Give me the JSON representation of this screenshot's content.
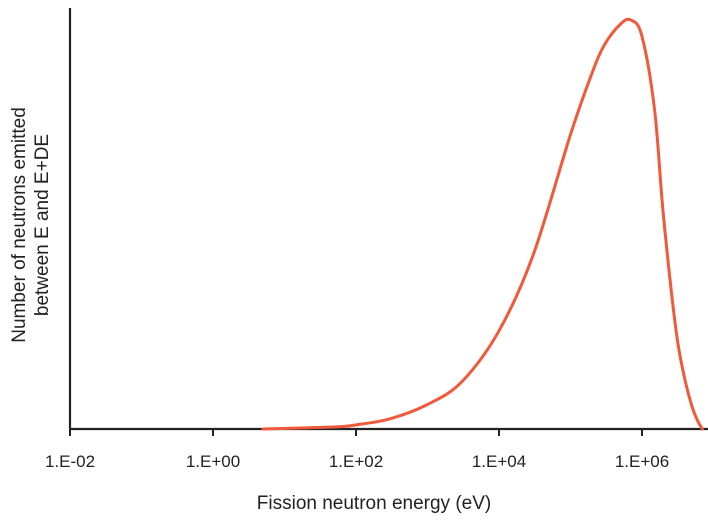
{
  "chart_data": {
    "type": "line",
    "title": "",
    "xlabel": "Fission neutron energy (eV)",
    "ylabel_lines": [
      "Number of neutrons emitted",
      "between E and E+DE"
    ],
    "x_scale": "log",
    "xlim": [
      0.01,
      7000000
    ],
    "ylim": [
      0,
      1.0
    ],
    "x_ticks": [
      0.01,
      1,
      100,
      10000,
      1000000
    ],
    "x_tick_labels": [
      "1.E-02",
      "1.E+00",
      "1.E+02",
      "1.E+04",
      "1.E+06"
    ],
    "y_ticks_shown": false,
    "grid": false,
    "legend": "none",
    "color": "#f05a3c",
    "series": [
      {
        "x": [
          5,
          50,
          100,
          300,
          1000,
          3000,
          10000,
          30000,
          100000,
          200000,
          300000,
          500000,
          700000,
          1000000,
          1500000,
          2000000,
          3000000,
          4000000,
          5000000,
          6000000,
          7000000
        ],
        "y": [
          0.0,
          0.005,
          0.01,
          0.025,
          0.06,
          0.115,
          0.24,
          0.425,
          0.72,
          0.87,
          0.94,
          0.99,
          1.0,
          0.96,
          0.78,
          0.52,
          0.24,
          0.12,
          0.055,
          0.02,
          0.0
        ]
      }
    ]
  }
}
